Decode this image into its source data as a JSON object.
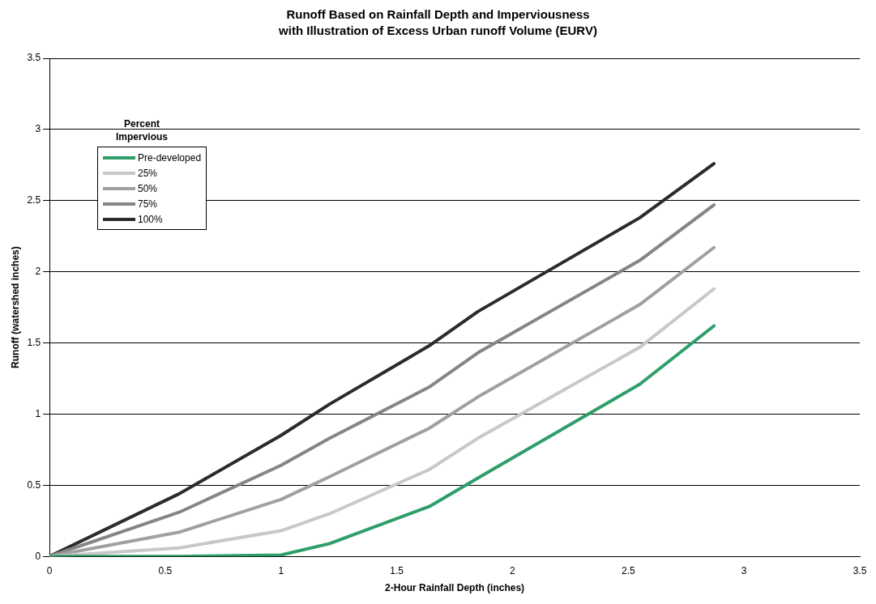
{
  "chart_data": {
    "type": "line",
    "title": "Runoff Based on Rainfall Depth and Imperviousness\nwith Illustration of Excess Urban runoff Volume (EURV)",
    "xlabel": "2-Hour Rainfall Depth (inches)",
    "ylabel": "Runoff (watershed inches)",
    "legend_title": "Percent\nImpervious",
    "x": [
      0,
      0.56,
      1.0,
      1.21,
      1.64,
      1.85,
      2.55,
      2.87
    ],
    "series": [
      {
        "name": "Pre-developed",
        "color": "#2e9e6a",
        "values": [
          0,
          0,
          0.01,
          0.09,
          0.35,
          0.55,
          1.21,
          1.62
        ]
      },
      {
        "name": "25%",
        "color": "#c8c8c8",
        "values": [
          0,
          0.06,
          0.18,
          0.3,
          0.61,
          0.83,
          1.47,
          1.88
        ]
      },
      {
        "name": "50%",
        "color": "#a0a0a0",
        "values": [
          0,
          0.17,
          0.4,
          0.56,
          0.9,
          1.12,
          1.77,
          2.17
        ]
      },
      {
        "name": "75%",
        "color": "#858585",
        "values": [
          0,
          0.31,
          0.64,
          0.83,
          1.19,
          1.43,
          2.08,
          2.47
        ]
      },
      {
        "name": "100%",
        "color": "#2b2b2b",
        "values": [
          0,
          0.44,
          0.85,
          1.07,
          1.48,
          1.72,
          2.38,
          2.76
        ]
      }
    ],
    "xlim": [
      0,
      3.5
    ],
    "xticks": [
      0,
      0.5,
      1,
      1.5,
      2,
      2.5,
      3,
      3.5
    ],
    "ylim": [
      0,
      3.5
    ],
    "yticks": [
      0,
      0.5,
      1,
      1.5,
      2,
      2.5,
      3,
      3.5
    ],
    "grid": "y",
    "legend": "top left",
    "marker": "none",
    "line_style": "solid"
  }
}
